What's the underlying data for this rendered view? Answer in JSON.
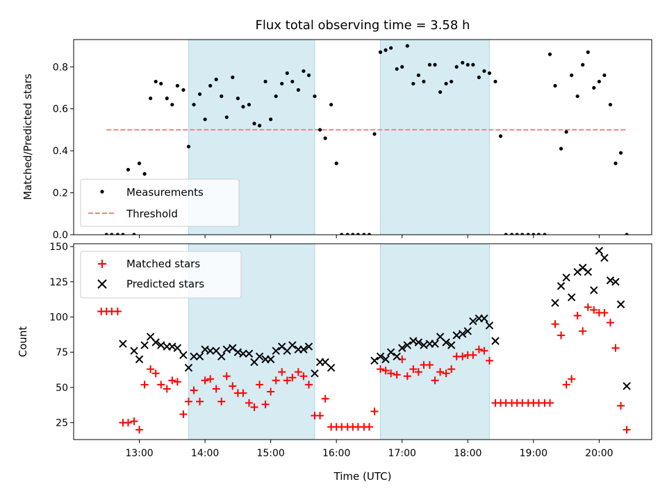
{
  "chart_data": {
    "type": "scatter",
    "title": "Flux total observing time = 3.58 h",
    "shared_x": {
      "label": "Time (UTC)",
      "range_hours": [
        12.0,
        20.8
      ],
      "ticks": [
        {
          "value": 13,
          "label": "13:00"
        },
        {
          "value": 14,
          "label": "14:00"
        },
        {
          "value": 15,
          "label": "15:00"
        },
        {
          "value": 16,
          "label": "16:00"
        },
        {
          "value": 17,
          "label": "17:00"
        },
        {
          "value": 18,
          "label": "18:00"
        },
        {
          "value": 19,
          "label": "19:00"
        },
        {
          "value": 20,
          "label": "20:00"
        }
      ]
    },
    "shaded_intervals_hours": [
      [
        13.75,
        15.67
      ],
      [
        16.67,
        18.33
      ]
    ],
    "shade_color": "#add8e6",
    "top": {
      "ylabel": "Matched/Predicted stars",
      "ylim": [
        0,
        0.93
      ],
      "yticks": [
        {
          "value": 0.0,
          "label": "0.0"
        },
        {
          "value": 0.2,
          "label": "0.2"
        },
        {
          "value": 0.4,
          "label": "0.4"
        },
        {
          "value": 0.6,
          "label": "0.6"
        },
        {
          "value": 0.8,
          "label": "0.8"
        }
      ],
      "threshold": {
        "value": 0.5,
        "x_range": [
          12.5,
          20.42
        ],
        "color": "#ff7f7f"
      },
      "legend": {
        "position": "lower-left",
        "items": [
          {
            "label": "Measurements",
            "marker": "dot",
            "color": "#000000"
          },
          {
            "label": "Threshold",
            "marker": "dashed-line",
            "color": "#ff7f7f"
          }
        ]
      },
      "measurements": {
        "color": "#000000",
        "x": [
          12.5,
          12.58,
          12.67,
          12.75,
          12.83,
          12.92,
          13.0,
          13.08,
          13.17,
          13.25,
          13.33,
          13.42,
          13.5,
          13.58,
          13.67,
          13.75,
          13.83,
          13.92,
          14.0,
          14.08,
          14.17,
          14.25,
          14.33,
          14.42,
          14.5,
          14.58,
          14.67,
          14.75,
          14.83,
          14.92,
          15.0,
          15.08,
          15.17,
          15.25,
          15.33,
          15.42,
          15.5,
          15.58,
          15.67,
          15.75,
          15.83,
          15.92,
          16.0,
          16.08,
          16.17,
          16.25,
          16.33,
          16.42,
          16.5,
          16.58,
          16.67,
          16.75,
          16.83,
          16.92,
          17.0,
          17.08,
          17.17,
          17.25,
          17.33,
          17.42,
          17.5,
          17.58,
          17.67,
          17.75,
          17.83,
          17.92,
          18.0,
          18.08,
          18.17,
          18.25,
          18.33,
          18.42,
          18.5,
          18.58,
          18.67,
          18.75,
          18.83,
          18.92,
          19.0,
          19.08,
          19.17,
          19.25,
          19.33,
          19.42,
          19.5,
          19.58,
          19.67,
          19.75,
          19.83,
          19.92,
          20.0,
          20.08,
          20.17,
          20.25,
          20.33,
          20.42
        ],
        "y": [
          0.0,
          0.0,
          0.0,
          0.0,
          0.31,
          0.0,
          0.34,
          0.29,
          0.65,
          0.73,
          0.72,
          0.65,
          0.62,
          0.71,
          0.69,
          0.42,
          0.62,
          0.67,
          0.55,
          0.71,
          0.74,
          0.66,
          0.56,
          0.75,
          0.65,
          0.61,
          0.62,
          0.53,
          0.52,
          0.73,
          0.55,
          0.66,
          0.72,
          0.77,
          0.73,
          0.69,
          0.78,
          0.76,
          0.66,
          0.5,
          0.46,
          0.62,
          0.34,
          0.0,
          0.0,
          0.0,
          0.0,
          0.0,
          0.0,
          0.48,
          0.87,
          0.88,
          0.89,
          0.79,
          0.8,
          0.9,
          0.72,
          0.76,
          0.73,
          0.81,
          0.81,
          0.68,
          0.72,
          0.73,
          0.8,
          0.82,
          0.81,
          0.81,
          0.75,
          0.78,
          0.77,
          0.73,
          0.47,
          0.0,
          0.0,
          0.0,
          0.0,
          0.0,
          0.0,
          0.0,
          0.0,
          0.86,
          0.71,
          0.41,
          0.49,
          0.76,
          0.66,
          0.81,
          0.87,
          0.7,
          0.73,
          0.76,
          0.62,
          0.34,
          0.39,
          0.0
        ]
      }
    },
    "bottom": {
      "ylabel": "Count",
      "ylim": [
        13,
        152
      ],
      "yticks": [
        {
          "value": 25,
          "label": "25"
        },
        {
          "value": 50,
          "label": "50"
        },
        {
          "value": 75,
          "label": "75"
        },
        {
          "value": 100,
          "label": "100"
        },
        {
          "value": 125,
          "label": "125"
        },
        {
          "value": 150,
          "label": "150"
        }
      ],
      "legend": {
        "position": "upper-left",
        "items": [
          {
            "label": "Matched stars",
            "marker": "plus",
            "color": "#ff0000"
          },
          {
            "label": "Predicted stars",
            "marker": "x",
            "color": "#000000"
          }
        ]
      },
      "matched": {
        "color": "#ff0000",
        "x": [
          12.42,
          12.5,
          12.58,
          12.67,
          12.75,
          12.83,
          12.92,
          13.0,
          13.08,
          13.17,
          13.25,
          13.33,
          13.42,
          13.5,
          13.58,
          13.67,
          13.75,
          13.83,
          13.92,
          14.0,
          14.08,
          14.17,
          14.25,
          14.33,
          14.42,
          14.5,
          14.58,
          14.67,
          14.75,
          14.83,
          14.92,
          15.0,
          15.08,
          15.17,
          15.25,
          15.33,
          15.42,
          15.5,
          15.58,
          15.67,
          15.75,
          15.83,
          15.92,
          16.0,
          16.08,
          16.17,
          16.25,
          16.33,
          16.42,
          16.5,
          16.58,
          16.67,
          16.75,
          16.83,
          16.92,
          17.0,
          17.08,
          17.17,
          17.25,
          17.33,
          17.42,
          17.5,
          17.58,
          17.67,
          17.75,
          17.83,
          17.92,
          18.0,
          18.08,
          18.17,
          18.25,
          18.33,
          18.42,
          18.5,
          18.58,
          18.67,
          18.75,
          18.83,
          18.92,
          19.0,
          19.08,
          19.17,
          19.25,
          19.33,
          19.42,
          19.5,
          19.58,
          19.67,
          19.75,
          19.83,
          19.92,
          20.0,
          20.08,
          20.17,
          20.25,
          20.33,
          20.42
        ],
        "y": [
          104,
          104,
          104,
          104,
          25,
          25,
          26,
          20,
          52,
          63,
          60,
          52,
          49,
          55,
          54,
          31,
          40,
          48,
          40,
          55,
          56,
          49,
          40,
          58,
          51,
          46,
          46,
          39,
          36,
          52,
          38,
          47,
          55,
          61,
          55,
          57,
          61,
          58,
          52,
          30,
          30,
          42,
          22,
          22,
          22,
          22,
          22,
          22,
          22,
          22,
          33,
          63,
          62,
          60,
          59,
          70,
          58,
          63,
          61,
          66,
          66,
          55,
          61,
          60,
          63,
          72,
          72,
          73,
          73,
          77,
          76,
          69,
          39,
          39,
          39,
          39,
          39,
          39,
          39,
          39,
          39,
          39,
          39,
          95,
          87,
          52,
          56,
          101,
          90,
          107,
          105,
          103,
          103,
          96,
          78,
          37,
          20
        ]
      },
      "predicted": {
        "color": "#000000",
        "x": [
          12.75,
          12.92,
          13.0,
          13.08,
          13.17,
          13.25,
          13.33,
          13.42,
          13.5,
          13.58,
          13.67,
          13.75,
          13.83,
          13.92,
          14.0,
          14.08,
          14.17,
          14.25,
          14.33,
          14.42,
          14.5,
          14.58,
          14.67,
          14.75,
          14.83,
          14.92,
          15.0,
          15.08,
          15.17,
          15.25,
          15.33,
          15.42,
          15.5,
          15.58,
          15.67,
          15.75,
          15.83,
          15.92,
          16.58,
          16.67,
          16.75,
          16.83,
          16.92,
          17.0,
          17.08,
          17.17,
          17.25,
          17.33,
          17.42,
          17.5,
          17.58,
          17.67,
          17.75,
          17.83,
          17.92,
          18.0,
          18.08,
          18.17,
          18.25,
          18.33,
          18.42,
          19.33,
          19.42,
          19.5,
          19.58,
          19.67,
          19.75,
          19.83,
          19.92,
          20.0,
          20.08,
          20.17,
          20.25,
          20.33,
          20.42
        ],
        "y": [
          81,
          76,
          70,
          80,
          86,
          82,
          80,
          79,
          79,
          78,
          73,
          64,
          72,
          72,
          77,
          76,
          76,
          72,
          77,
          78,
          75,
          74,
          74,
          68,
          72,
          70,
          70,
          76,
          79,
          76,
          80,
          77,
          77,
          79,
          60,
          68,
          68,
          64,
          69,
          72,
          70,
          75,
          72,
          78,
          80,
          83,
          82,
          80,
          81,
          81,
          86,
          82,
          80,
          87,
          88,
          90,
          97,
          99,
          99,
          94,
          83,
          110,
          122,
          128,
          114,
          132,
          135,
          132,
          119,
          147,
          142,
          126,
          125,
          109,
          51
        ]
      }
    }
  }
}
